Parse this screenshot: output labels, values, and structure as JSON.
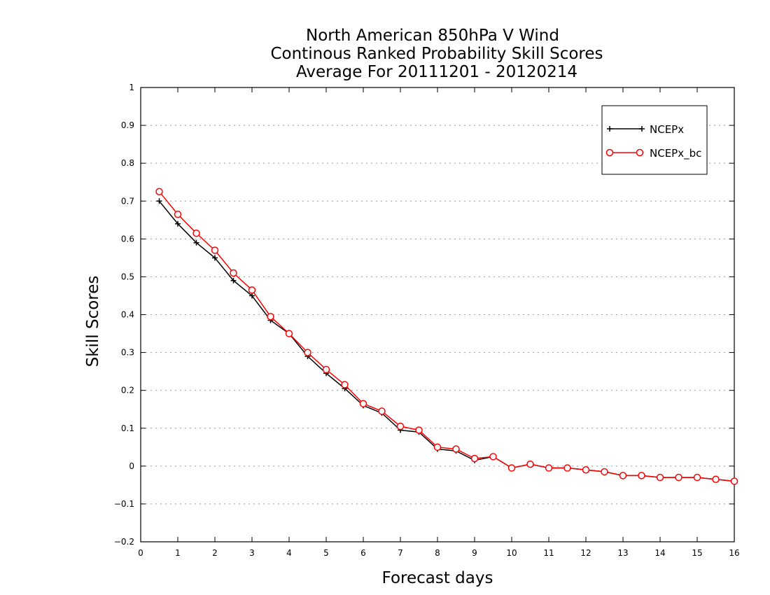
{
  "chart_data": {
    "type": "line",
    "title": [
      "North American 850hPa V Wind",
      "Continous Ranked Probability Skill Scores",
      "Average For 20111201 - 20120214"
    ],
    "xlabel": "Forecast days",
    "ylabel": "Skill Scores",
    "xlim": [
      0,
      16
    ],
    "ylim": [
      -0.2,
      1
    ],
    "xticks": [
      "0",
      "1",
      "2",
      "3",
      "4",
      "5",
      "6",
      "7",
      "8",
      "9",
      "10",
      "11",
      "12",
      "13",
      "14",
      "15",
      "16"
    ],
    "yticks": [
      "−0.2",
      "−0.1",
      "0",
      "0.1",
      "0.2",
      "0.3",
      "0.4",
      "0.5",
      "0.6",
      "0.7",
      "0.8",
      "0.9",
      "1"
    ],
    "ytick_values": [
      -0.2,
      -0.1,
      0,
      0.1,
      0.2,
      0.3,
      0.4,
      0.5,
      0.6,
      0.7,
      0.8,
      0.9,
      1.0
    ],
    "grid": "horizontal dotted",
    "legend_position": "top-right",
    "x": [
      0.5,
      1,
      1.5,
      2,
      2.5,
      3,
      3.5,
      4,
      4.5,
      5,
      5.5,
      6,
      6.5,
      7,
      7.5,
      8,
      8.5,
      9,
      9.5,
      10,
      10.5,
      11,
      11.5,
      12,
      12.5,
      13,
      13.5,
      14,
      14.5,
      15,
      15.5,
      16
    ],
    "series": [
      {
        "name": "NCEPx",
        "color": "#000000",
        "marker": "plus",
        "values": [
          0.7,
          0.64,
          0.59,
          0.55,
          0.49,
          0.45,
          0.385,
          0.35,
          0.29,
          0.245,
          0.205,
          0.16,
          0.14,
          0.095,
          0.09,
          0.045,
          0.04,
          0.015,
          0.025,
          -0.005,
          0.005,
          -0.005,
          -0.005,
          -0.01,
          -0.015,
          -0.025,
          -0.025,
          -0.03,
          -0.03,
          -0.03,
          -0.035,
          -0.04
        ]
      },
      {
        "name": "NCEPx_bc",
        "color": "#ff0000",
        "marker": "circle",
        "values": [
          0.725,
          0.665,
          0.615,
          0.57,
          0.51,
          0.465,
          0.395,
          0.35,
          0.3,
          0.255,
          0.215,
          0.165,
          0.145,
          0.105,
          0.095,
          0.05,
          0.045,
          0.02,
          0.025,
          -0.005,
          0.005,
          -0.005,
          -0.005,
          -0.01,
          -0.015,
          -0.025,
          -0.025,
          -0.03,
          -0.03,
          -0.03,
          -0.035,
          -0.04
        ]
      }
    ]
  }
}
